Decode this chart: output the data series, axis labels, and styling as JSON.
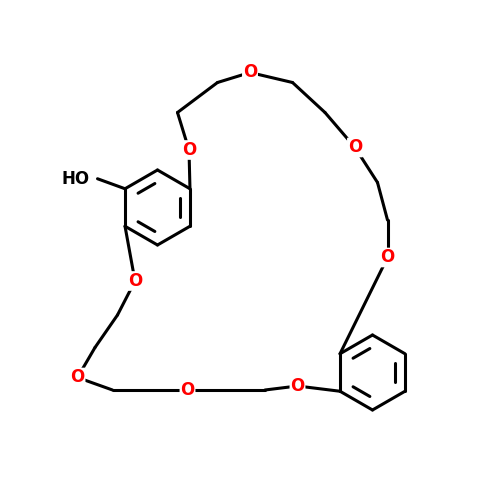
{
  "background_color": "#ffffff",
  "bond_color": "#000000",
  "oxygen_color": "#ff0000",
  "oxygen_label": "O",
  "ho_label": "HO",
  "bond_width": 2.2,
  "font_size": 12,
  "figsize": [
    5.0,
    5.0
  ],
  "dpi": 100,
  "xlim": [
    0,
    10
  ],
  "ylim": [
    0,
    10
  ]
}
